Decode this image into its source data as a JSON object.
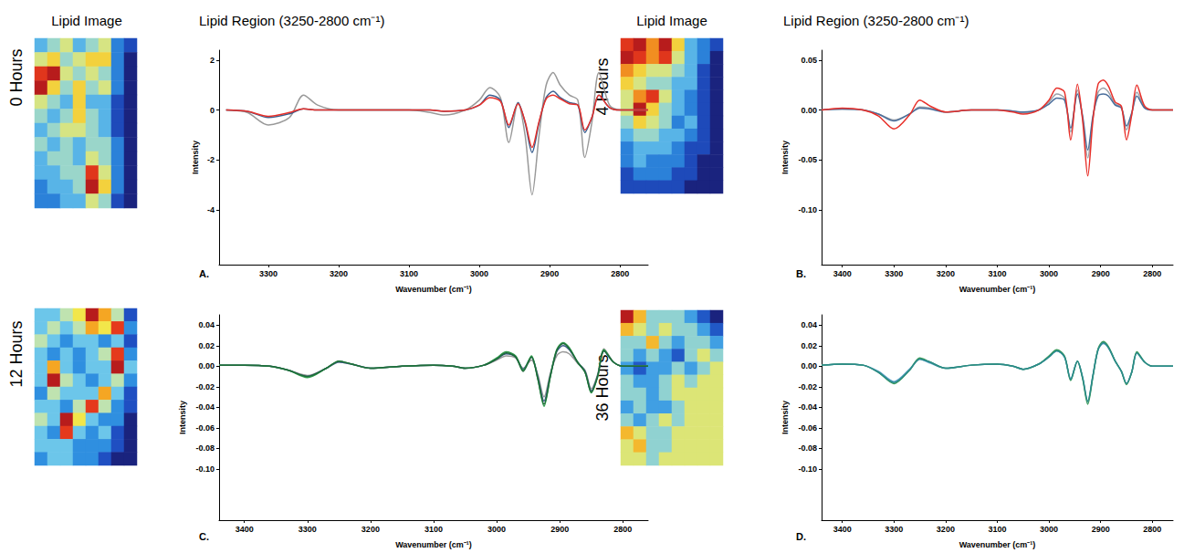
{
  "chart_data": [
    {
      "type": "line",
      "panel": "A.",
      "time_label": "0 Hours",
      "image_title": "Lipid Image",
      "image_cells": [
        [
          3,
          4,
          5,
          3,
          4,
          5,
          2,
          1
        ],
        [
          5,
          6,
          4,
          5,
          6,
          6,
          2,
          0
        ],
        [
          8,
          9,
          5,
          4,
          5,
          4,
          2,
          0
        ],
        [
          9,
          6,
          4,
          6,
          4,
          5,
          2,
          0
        ],
        [
          5,
          4,
          3,
          6,
          3,
          3,
          1,
          0
        ],
        [
          4,
          3,
          4,
          6,
          4,
          3,
          1,
          0
        ],
        [
          3,
          4,
          5,
          5,
          4,
          3,
          1,
          0
        ],
        [
          4,
          3,
          4,
          3,
          4,
          4,
          2,
          0
        ],
        [
          3,
          4,
          4,
          3,
          5,
          4,
          2,
          0
        ],
        [
          3,
          3,
          4,
          4,
          8,
          5,
          2,
          0
        ],
        [
          2,
          3,
          3,
          4,
          9,
          6,
          2,
          0
        ],
        [
          2,
          2,
          3,
          3,
          5,
          4,
          1,
          0
        ]
      ],
      "title": "Lipid Region (3250-2800 cm⁻¹)",
      "xlabel": "Wavenumber (cm⁻¹)",
      "ylabel": "Intensity",
      "x": [
        3360,
        3330,
        3300,
        3270,
        3250,
        3230,
        3200,
        3150,
        3100,
        3070,
        3050,
        3020,
        3000,
        2985,
        2970,
        2958,
        2945,
        2935,
        2925,
        2915,
        2905,
        2895,
        2885,
        2872,
        2860,
        2850,
        2840,
        2830,
        2815,
        2800,
        2780,
        2760
      ],
      "series": [
        {
          "color": "#999999",
          "values": [
            0,
            -0.1,
            -0.6,
            -0.3,
            0.6,
            0.2,
            0,
            0,
            0,
            -0.1,
            -0.2,
            0,
            0.4,
            0.9,
            0.5,
            -1.3,
            0.3,
            -1.0,
            -3.4,
            -1.0,
            1.0,
            1.5,
            1.0,
            0.6,
            0.4,
            -1.9,
            -0.5,
            1.5,
            0.2,
            0,
            0,
            0
          ]
        },
        {
          "color": "#3a5f8f",
          "values": [
            0,
            -0.05,
            -0.3,
            -0.15,
            0.05,
            0,
            0,
            0,
            0,
            0,
            -0.05,
            0,
            0.2,
            0.6,
            0.4,
            -0.7,
            0.3,
            -0.5,
            -1.7,
            -0.5,
            0.5,
            0.75,
            0.5,
            0.3,
            0.2,
            -0.9,
            -0.3,
            0.6,
            0.1,
            0,
            0,
            0
          ]
        },
        {
          "color": "#e8302a",
          "values": [
            0,
            -0.05,
            -0.25,
            -0.1,
            0.05,
            0,
            0,
            0,
            0,
            0,
            -0.05,
            0,
            0.2,
            0.5,
            0.35,
            -0.6,
            0.25,
            -0.45,
            -1.5,
            -0.45,
            0.45,
            0.6,
            0.45,
            0.25,
            0.2,
            -0.8,
            -0.3,
            0.6,
            0.1,
            0,
            0,
            0
          ]
        }
      ],
      "xlim": [
        3370,
        2760
      ],
      "xticks": [
        3300,
        3200,
        3100,
        3000,
        2900,
        2800
      ],
      "ylim": [
        -6.2,
        2.4
      ],
      "yticks": [
        2,
        0,
        -2,
        -4
      ],
      "grid": false
    },
    {
      "type": "line",
      "panel": "B.",
      "time_label": "4 Hours",
      "image_title": "Lipid Image",
      "image_cells": [
        [
          8,
          9,
          7,
          9,
          6,
          3,
          2,
          1
        ],
        [
          9,
          8,
          7,
          8,
          5,
          3,
          2,
          0
        ],
        [
          7,
          6,
          5,
          5,
          4,
          3,
          1,
          0
        ],
        [
          6,
          5,
          4,
          4,
          3,
          3,
          1,
          0
        ],
        [
          5,
          7,
          8,
          5,
          3,
          2,
          1,
          0
        ],
        [
          5,
          9,
          6,
          4,
          3,
          2,
          1,
          0
        ],
        [
          4,
          6,
          5,
          4,
          2,
          3,
          1,
          0
        ],
        [
          3,
          4,
          4,
          3,
          3,
          2,
          1,
          0
        ],
        [
          2,
          3,
          3,
          3,
          2,
          1,
          1,
          0
        ],
        [
          2,
          3,
          2,
          2,
          2,
          1,
          0,
          0
        ],
        [
          1,
          2,
          2,
          2,
          1,
          1,
          0,
          0
        ],
        [
          1,
          1,
          1,
          1,
          1,
          0,
          0,
          0
        ]
      ],
      "title": "Lipid Region (3250-2800 cm⁻¹)",
      "xlabel": "Wavenumber (cm⁻¹)",
      "ylabel": "Intensity",
      "x": [
        3440,
        3400,
        3360,
        3330,
        3300,
        3270,
        3250,
        3230,
        3200,
        3150,
        3100,
        3070,
        3050,
        3020,
        3000,
        2985,
        2970,
        2958,
        2945,
        2935,
        2925,
        2915,
        2905,
        2895,
        2885,
        2872,
        2860,
        2850,
        2840,
        2830,
        2815,
        2800,
        2780,
        2760
      ],
      "series": [
        {
          "color": "#9aa0a8",
          "values": [
            0,
            0.001,
            0,
            -0.004,
            -0.01,
            -0.004,
            0.003,
            0.002,
            -0.002,
            0,
            0,
            -0.001,
            -0.003,
            0,
            0.008,
            0.016,
            0.012,
            -0.022,
            0.02,
            -0.008,
            -0.048,
            -0.008,
            0.018,
            0.022,
            0.018,
            0.006,
            0.003,
            -0.02,
            -0.004,
            0.018,
            0.003,
            0,
            0,
            0
          ]
        },
        {
          "color": "#4a6e9c",
          "values": [
            0,
            0.001,
            0,
            -0.004,
            -0.011,
            -0.004,
            0.002,
            0.001,
            -0.002,
            0,
            0,
            -0.001,
            -0.002,
            0,
            0.006,
            0.012,
            0.01,
            -0.018,
            0.016,
            -0.006,
            -0.04,
            -0.006,
            0.014,
            0.016,
            0.014,
            0.005,
            0.002,
            -0.016,
            -0.003,
            0.014,
            0.002,
            0,
            0,
            0
          ]
        },
        {
          "color": "#e8302a",
          "values": [
            0,
            0.002,
            0,
            -0.006,
            -0.019,
            -0.005,
            0.01,
            0.004,
            -0.002,
            0,
            0,
            -0.002,
            -0.004,
            0,
            0.01,
            0.022,
            0.018,
            -0.03,
            0.026,
            -0.01,
            -0.066,
            -0.01,
            0.026,
            0.03,
            0.024,
            0.008,
            0.004,
            -0.03,
            -0.005,
            0.025,
            0.004,
            0,
            0,
            0
          ]
        }
      ],
      "xlim": [
        3440,
        2760
      ],
      "xticks": [
        3400,
        3300,
        3200,
        3100,
        3000,
        2900,
        2800
      ],
      "ylim": [
        -0.155,
        0.06
      ],
      "yticks": [
        0.05,
        {
          "value": 0,
          "label": "0.00"
        },
        -0.05,
        {
          "value": -0.1,
          "label": "-0.10"
        }
      ],
      "grid": false
    },
    {
      "type": "line",
      "panel": "C.",
      "time_label": "12 Hours",
      "image_cells": [
        [
          4,
          4,
          5,
          6,
          9,
          7,
          5,
          2
        ],
        [
          4,
          5,
          4,
          5,
          7,
          6,
          8,
          3
        ],
        [
          5,
          4,
          3,
          4,
          4,
          3,
          4,
          2
        ],
        [
          4,
          3,
          4,
          3,
          4,
          5,
          8,
          3
        ],
        [
          4,
          7,
          4,
          3,
          4,
          4,
          9,
          4
        ],
        [
          4,
          9,
          5,
          4,
          3,
          4,
          5,
          3
        ],
        [
          3,
          5,
          4,
          4,
          4,
          7,
          4,
          2
        ],
        [
          4,
          4,
          3,
          5,
          8,
          5,
          3,
          2
        ],
        [
          5,
          4,
          9,
          6,
          4,
          3,
          3,
          1
        ],
        [
          4,
          3,
          8,
          4,
          3,
          4,
          2,
          1
        ],
        [
          4,
          4,
          4,
          3,
          3,
          3,
          2,
          1
        ],
        [
          3,
          4,
          4,
          3,
          3,
          2,
          1,
          1
        ]
      ],
      "xlabel": "Wavenumber (cm⁻¹)",
      "ylabel": "Intensity",
      "x": [
        3440,
        3400,
        3360,
        3330,
        3300,
        3270,
        3250,
        3230,
        3200,
        3150,
        3100,
        3070,
        3050,
        3020,
        3000,
        2985,
        2970,
        2958,
        2945,
        2935,
        2925,
        2915,
        2905,
        2895,
        2885,
        2872,
        2860,
        2850,
        2840,
        2830,
        2815,
        2800,
        2780,
        2760
      ],
      "series": [
        {
          "color": "#999999",
          "values": [
            0.001,
            0.001,
            0,
            -0.004,
            -0.009,
            -0.002,
            0.004,
            0.002,
            -0.002,
            0,
            0.001,
            0,
            -0.002,
            0.001,
            0.006,
            0.01,
            0.008,
            -0.002,
            0.006,
            -0.008,
            -0.03,
            -0.007,
            0.01,
            0.014,
            0.012,
            0.003,
            -0.004,
            -0.022,
            -0.008,
            0.017,
            0.004,
            0,
            0,
            0
          ]
        },
        {
          "color": "#3a5a8a",
          "values": [
            0.001,
            0.001,
            0,
            -0.004,
            -0.01,
            -0.002,
            0.004,
            0.002,
            -0.002,
            0,
            0.001,
            0,
            -0.002,
            0.001,
            0.007,
            0.012,
            0.009,
            -0.003,
            0.009,
            -0.01,
            -0.034,
            -0.009,
            0.014,
            0.02,
            0.016,
            0.004,
            -0.005,
            -0.024,
            -0.009,
            0.015,
            0.004,
            0,
            0,
            0
          ]
        },
        {
          "color": "#2e9a4a",
          "values": [
            0.001,
            0.001,
            0,
            -0.004,
            -0.011,
            -0.002,
            0.005,
            0.002,
            -0.002,
            0,
            0.001,
            0,
            -0.002,
            0.001,
            0.008,
            0.014,
            0.01,
            -0.004,
            0.01,
            -0.012,
            -0.039,
            -0.01,
            0.016,
            0.023,
            0.018,
            0.004,
            -0.006,
            -0.026,
            -0.01,
            0.016,
            0.004,
            0,
            0,
            0
          ]
        },
        {
          "color": "#1e6b3a",
          "values": [
            0.001,
            0.001,
            0,
            -0.004,
            -0.01,
            -0.002,
            0.005,
            0.002,
            -0.002,
            0,
            0.001,
            0,
            -0.002,
            0.001,
            0.007,
            0.013,
            0.009,
            -0.005,
            0.009,
            -0.012,
            -0.037,
            -0.01,
            0.015,
            0.022,
            0.017,
            0.004,
            -0.006,
            -0.025,
            -0.01,
            0.015,
            0.004,
            0,
            0,
            0
          ]
        }
      ],
      "xlim": [
        3440,
        2760
      ],
      "xticks": [
        3400,
        3300,
        3200,
        3100,
        3000,
        2900,
        2800
      ],
      "ylim": [
        -0.15,
        0.05
      ],
      "yticks": [
        0.04,
        0.02,
        {
          "value": 0,
          "label": "0.00"
        },
        -0.02,
        -0.04,
        -0.06,
        -0.08,
        {
          "value": -0.1,
          "label": "-0.10"
        }
      ],
      "grid": false
    },
    {
      "type": "line",
      "panel": "D.",
      "time_label": "36 Hours",
      "image_cells": [
        [
          9,
          7,
          5,
          5,
          5,
          4,
          3,
          2
        ],
        [
          7,
          6,
          5,
          6,
          5,
          5,
          4,
          3
        ],
        [
          5,
          5,
          7,
          5,
          4,
          5,
          5,
          4
        ],
        [
          5,
          4,
          5,
          4,
          3,
          5,
          6,
          5
        ],
        [
          4,
          3,
          4,
          4,
          5,
          4,
          5,
          6
        ],
        [
          5,
          4,
          4,
          5,
          6,
          5,
          6,
          6
        ],
        [
          5,
          5,
          4,
          5,
          6,
          6,
          6,
          6
        ],
        [
          4,
          5,
          4,
          4,
          5,
          6,
          6,
          6
        ],
        [
          5,
          4,
          5,
          6,
          5,
          6,
          6,
          6
        ],
        [
          7,
          6,
          5,
          5,
          6,
          6,
          6,
          6
        ],
        [
          6,
          7,
          5,
          5,
          6,
          6,
          6,
          6
        ],
        [
          6,
          6,
          5,
          6,
          6,
          6,
          6,
          6
        ]
      ],
      "xlabel": "Wavenumber (cm⁻¹)",
      "ylabel": "Intensity",
      "x": [
        3440,
        3400,
        3360,
        3330,
        3300,
        3270,
        3250,
        3230,
        3200,
        3150,
        3100,
        3070,
        3050,
        3020,
        3000,
        2985,
        2970,
        2958,
        2945,
        2935,
        2925,
        2915,
        2905,
        2895,
        2885,
        2872,
        2860,
        2850,
        2840,
        2830,
        2815,
        2800,
        2780,
        2760
      ],
      "series": [
        {
          "color": "#5aa0c8",
          "values": [
            0.001,
            0.002,
            0.001,
            -0.005,
            -0.015,
            -0.003,
            0.007,
            0.003,
            -0.002,
            0.001,
            0.002,
            0,
            -0.003,
            0.002,
            0.009,
            0.015,
            0.009,
            -0.012,
            0.005,
            -0.011,
            -0.035,
            -0.009,
            0.016,
            0.022,
            0.018,
            0.005,
            -0.005,
            -0.017,
            -0.006,
            0.013,
            0.004,
            0,
            0,
            0
          ]
        },
        {
          "color": "#3a9a5a",
          "values": [
            0.001,
            0.002,
            0.001,
            -0.006,
            -0.017,
            -0.004,
            0.008,
            0.004,
            -0.002,
            0.001,
            0.002,
            0,
            -0.003,
            0.002,
            0.01,
            0.016,
            0.01,
            -0.014,
            0.005,
            -0.012,
            -0.037,
            -0.01,
            0.017,
            0.024,
            0.019,
            0.005,
            -0.005,
            -0.018,
            -0.006,
            0.014,
            0.004,
            0,
            0,
            0
          ]
        },
        {
          "color": "#2a8a8a",
          "values": [
            0.001,
            0.002,
            0.001,
            -0.006,
            -0.016,
            -0.004,
            0.007,
            0.004,
            -0.002,
            0.001,
            0.002,
            0,
            -0.003,
            0.002,
            0.009,
            0.015,
            0.009,
            -0.013,
            0.005,
            -0.011,
            -0.034,
            -0.009,
            0.016,
            0.023,
            0.018,
            0.005,
            -0.005,
            -0.017,
            -0.006,
            0.013,
            0.004,
            0,
            0,
            0
          ]
        }
      ],
      "xlim": [
        3440,
        2760
      ],
      "xticks": [
        3400,
        3300,
        3200,
        3100,
        3000,
        2900,
        2800
      ],
      "ylim": [
        -0.15,
        0.05
      ],
      "yticks": [
        0.04,
        0.02,
        {
          "value": 0,
          "label": "0.00"
        },
        -0.02,
        -0.04,
        -0.06,
        -0.08,
        {
          "value": -0.1,
          "label": "-0.10"
        }
      ],
      "grid": false
    }
  ]
}
